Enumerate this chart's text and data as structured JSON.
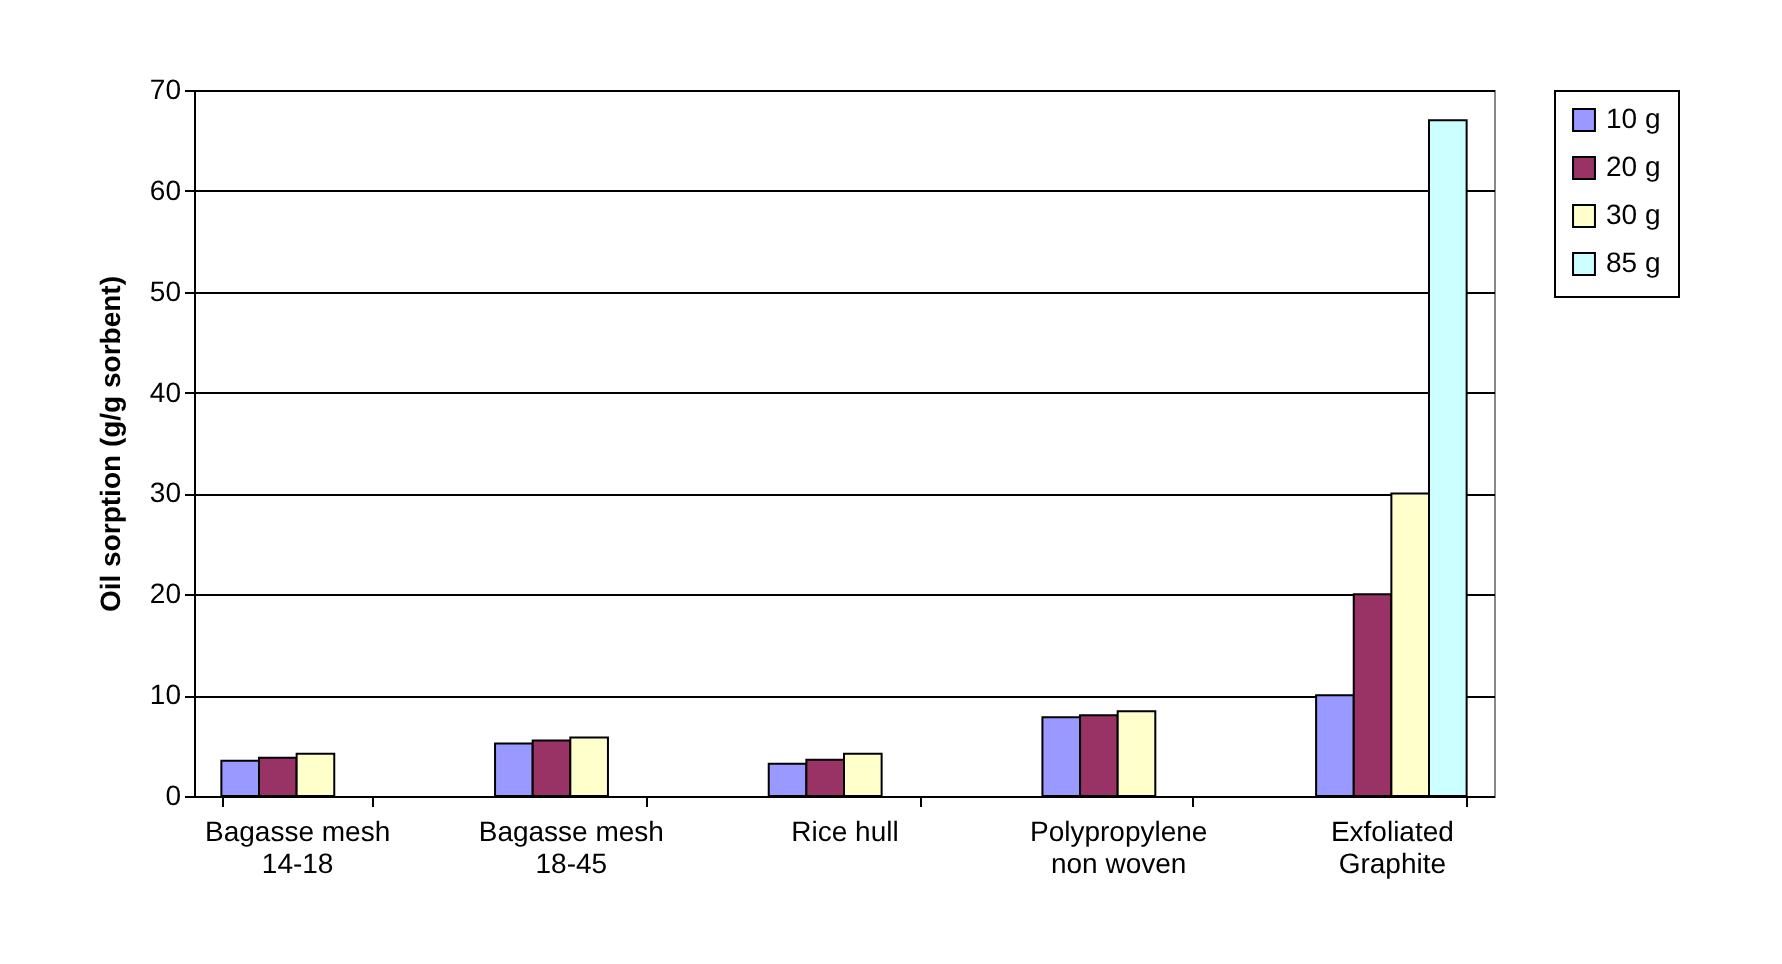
{
  "chart_data": {
    "type": "bar",
    "ylabel": "Oil sorption (g/g sorbent)",
    "categories": [
      "Bagasse mesh 14-18",
      "Bagasse mesh 18-45",
      "Rice hull",
      "Polypropylene non woven",
      "Exfoliated Graphite"
    ],
    "series": [
      {
        "name": "10 g",
        "color": "#9999ff",
        "values": [
          3.5,
          5.2,
          3.2,
          7.8,
          10
        ]
      },
      {
        "name": "20 g",
        "color": "#993366",
        "values": [
          3.8,
          5.5,
          3.6,
          8.0,
          20
        ]
      },
      {
        "name": "30 g",
        "color": "#ffffcc",
        "values": [
          4.2,
          5.8,
          4.2,
          8.4,
          30
        ]
      },
      {
        "name": "85 g",
        "color": "#ccffff",
        "values": [
          null,
          null,
          null,
          null,
          67
        ]
      }
    ],
    "ylim": [
      0,
      70
    ],
    "yticks": [
      0,
      10,
      20,
      30,
      40,
      50,
      60,
      70
    ],
    "grid": "y",
    "legend": "right"
  }
}
